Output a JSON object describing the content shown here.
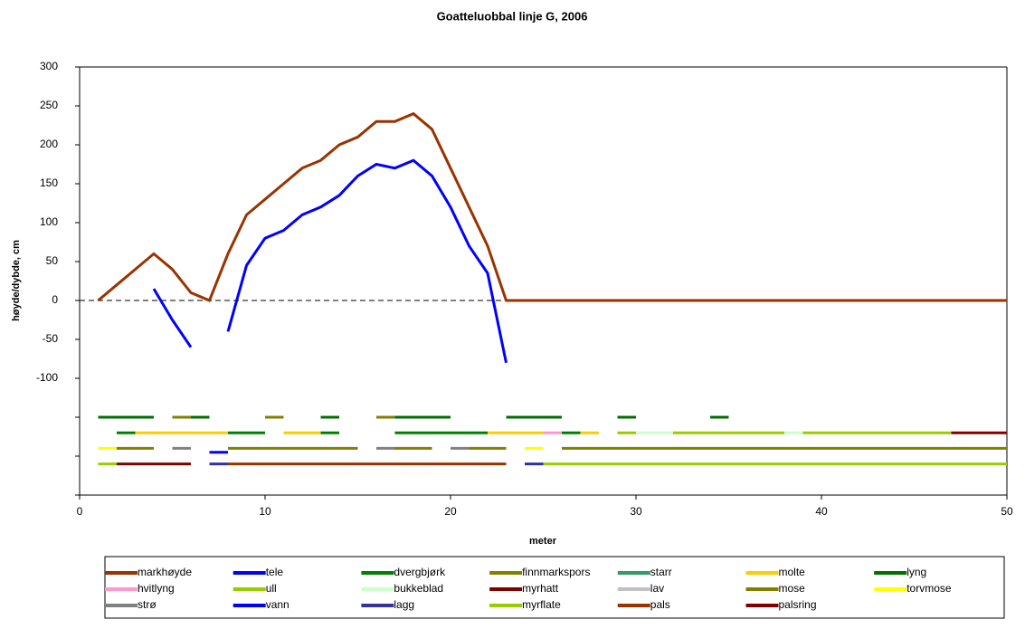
{
  "chart_data": {
    "type": "line",
    "title": "Goatteluobbal linje G, 2006",
    "x_label": "meter",
    "y_label": "høyde/dybde, cm",
    "xlim": [
      0,
      50
    ],
    "xticks": [
      0,
      10,
      20,
      30,
      40,
      50
    ],
    "ylim": [
      -250,
      300
    ],
    "yticks": [
      300,
      250,
      200,
      150,
      100,
      50,
      0,
      -50,
      -100,
      {
        "value": -150,
        "label": null
      },
      {
        "value": -200,
        "label": null
      },
      {
        "value": -250,
        "label": null
      }
    ],
    "zero_line_dashed": true,
    "series": [
      {
        "name": "markhøyde",
        "color": "#993300",
        "width": 3,
        "x": [
          1,
          2,
          3,
          4,
          5,
          6,
          7,
          8,
          9,
          10,
          11,
          12,
          13,
          14,
          15,
          16,
          17,
          18,
          19,
          20,
          21,
          22,
          23,
          50
        ],
        "values": [
          0,
          20,
          40,
          60,
          40,
          10,
          0,
          60,
          110,
          130,
          150,
          170,
          180,
          200,
          210,
          230,
          230,
          240,
          220,
          170,
          120,
          70,
          0,
          0
        ]
      },
      {
        "name": "tele",
        "color": "#0000ff",
        "width": 3,
        "x": [
          4,
          5,
          6,
          7,
          8,
          9,
          10,
          11,
          12,
          13,
          14,
          15,
          16,
          17,
          18,
          19,
          20,
          21,
          22,
          23
        ],
        "values": [
          15,
          -25,
          -60,
          null,
          -40,
          45,
          80,
          90,
          110,
          120,
          135,
          160,
          175,
          170,
          180,
          160,
          120,
          70,
          35,
          -80
        ]
      },
      {
        "name": "dvergbjørk",
        "color": "#008000",
        "width": 3,
        "x": [
          2,
          3,
          5.5,
          8,
          10,
          11.5,
          13,
          14,
          15.5,
          17,
          22,
          24,
          26,
          27
        ],
        "values": [
          -170,
          -170,
          null,
          -170,
          -170,
          null,
          -170,
          -170,
          null,
          -170,
          -170,
          null,
          -170,
          -170
        ]
      },
      {
        "name": "finnmarkspors",
        "color": "#808000",
        "width": 3,
        "x": [
          5,
          6,
          8,
          10,
          11,
          13.5,
          16,
          17
        ],
        "values": [
          -150,
          -150,
          null,
          -150,
          -150,
          null,
          -150,
          -150
        ]
      },
      {
        "name": "starr",
        "color": "#339966",
        "width": 3,
        "x": [],
        "values": []
      },
      {
        "name": "molte",
        "color": "#ffcc00",
        "width": 3,
        "x": [
          3,
          8,
          9.5,
          11,
          13,
          17.5,
          22,
          25,
          26,
          27,
          28
        ],
        "values": [
          -170,
          -170,
          null,
          -170,
          -170,
          null,
          -170,
          -170,
          null,
          -170,
          -170
        ]
      },
      {
        "name": "lyng",
        "color": "#006f00",
        "width": 3,
        "x": [
          1,
          4,
          5,
          6,
          7,
          10,
          13,
          14,
          15.5,
          17,
          20,
          21.5,
          23,
          26,
          27.5,
          29,
          30,
          32,
          34,
          35
        ],
        "values": [
          -150,
          -150,
          null,
          -150,
          -150,
          null,
          -150,
          -150,
          null,
          -150,
          -150,
          null,
          -150,
          -150,
          null,
          -150,
          -150,
          null,
          -150,
          -150
        ]
      },
      {
        "name": "hvitlyng",
        "color": "#ff99cc",
        "width": 3,
        "x": [
          25,
          26
        ],
        "values": [
          -170,
          -170
        ]
      },
      {
        "name": "ull",
        "color": "#99cc00",
        "width": 3,
        "x": [
          29,
          30,
          31,
          32,
          38,
          38.5,
          39,
          47
        ],
        "values": [
          -170,
          -170,
          null,
          -170,
          -170,
          null,
          -170,
          -170
        ]
      },
      {
        "name": "bukkeblad",
        "color": "#ccffcc",
        "width": 3,
        "x": [
          30,
          32,
          35,
          38,
          39
        ],
        "values": [
          -170,
          -170,
          null,
          -170,
          -170
        ]
      },
      {
        "name": "myrhatt",
        "color": "#800000",
        "width": 3,
        "x": [
          47,
          50
        ],
        "values": [
          -170,
          -170
        ]
      },
      {
        "name": "lav",
        "color": "#c0c0c0",
        "width": 3,
        "x": [],
        "values": []
      },
      {
        "name": "mose",
        "color": "#7f7f00",
        "width": 3,
        "x": [
          2,
          4,
          6,
          8,
          15,
          16,
          17,
          19,
          20,
          21,
          23,
          24.5,
          26,
          50
        ],
        "values": [
          -190,
          -190,
          null,
          -190,
          -190,
          null,
          -190,
          -190,
          null,
          -190,
          -190,
          null,
          -190,
          -190
        ]
      },
      {
        "name": "torvmose",
        "color": "#ffff00",
        "width": 3,
        "x": [
          1,
          2,
          13,
          24,
          25
        ],
        "values": [
          -190,
          -190,
          null,
          -190,
          -190
        ]
      },
      {
        "name": "strø",
        "color": "#808080",
        "width": 3,
        "x": [
          5,
          6,
          11,
          16,
          17,
          18.5,
          20,
          21
        ],
        "values": [
          -190,
          -190,
          null,
          -190,
          -190,
          null,
          -190,
          -190
        ]
      },
      {
        "name": "vann",
        "color": "#0000ff",
        "width": 3,
        "x": [
          7,
          8
        ],
        "values": [
          -195,
          -195
        ]
      },
      {
        "name": "lagg",
        "color": "#333399",
        "width": 3,
        "x": [
          7,
          8,
          16,
          24,
          25
        ],
        "values": [
          -210,
          -210,
          null,
          -210,
          -210
        ]
      },
      {
        "name": "myrflate",
        "color": "#99cc00",
        "width": 3,
        "x": [
          1,
          2,
          13.5,
          25,
          50
        ],
        "values": [
          -210,
          -210,
          null,
          -210,
          -210
        ]
      },
      {
        "name": "pals",
        "color": "#993300",
        "width": 3,
        "x": [
          8,
          23
        ],
        "values": [
          -210,
          -210
        ]
      },
      {
        "name": "palsring",
        "color": "#800000",
        "width": 3,
        "x": [
          2,
          6
        ],
        "values": [
          -210,
          -210
        ]
      }
    ]
  }
}
